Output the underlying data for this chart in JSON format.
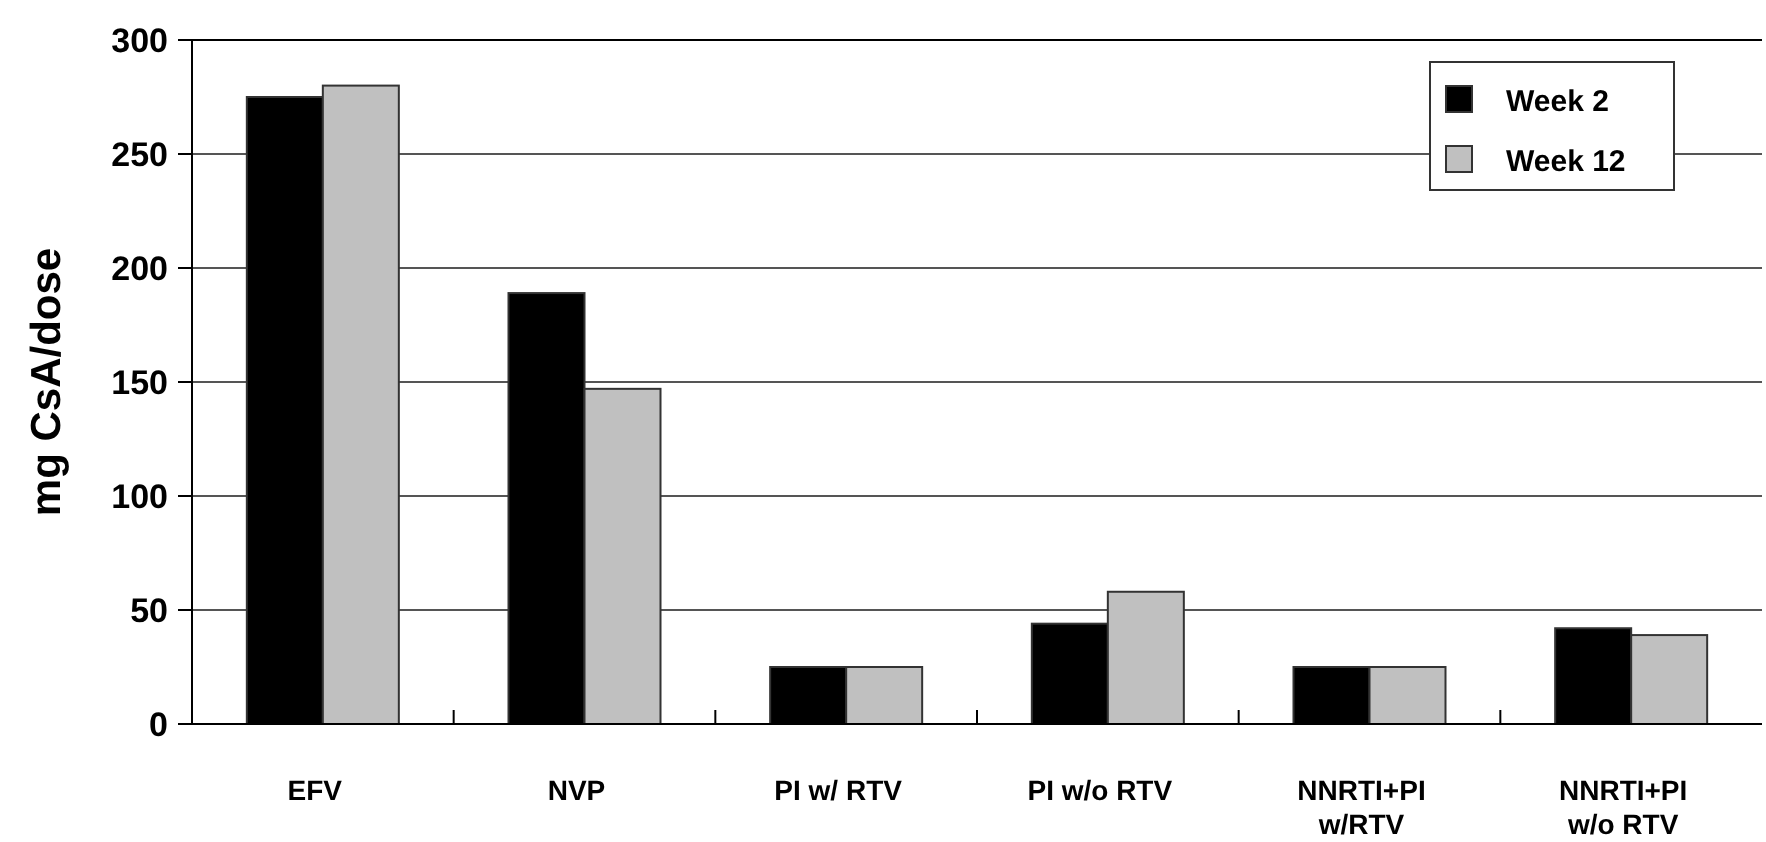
{
  "chart_data": {
    "type": "bar",
    "ylabel": "mg CsA/dose",
    "categories": [
      "EFV",
      "NVP",
      "PI w/ RTV",
      "PI w/o RTV",
      "NNRTI+PI w/RTV",
      "NNRTI+PI w/o RTV"
    ],
    "series": [
      {
        "name": "Week 2",
        "color": "#000000",
        "values": [
          275,
          189,
          25,
          44,
          25,
          42
        ]
      },
      {
        "name": "Week 12",
        "color": "#c0c0c0",
        "values": [
          280,
          147,
          25,
          58,
          25,
          39
        ]
      }
    ],
    "ylim": [
      0,
      300
    ],
    "yticks": [
      0,
      50,
      100,
      150,
      200,
      250,
      300
    ],
    "grid": "y",
    "legend": "top right"
  }
}
